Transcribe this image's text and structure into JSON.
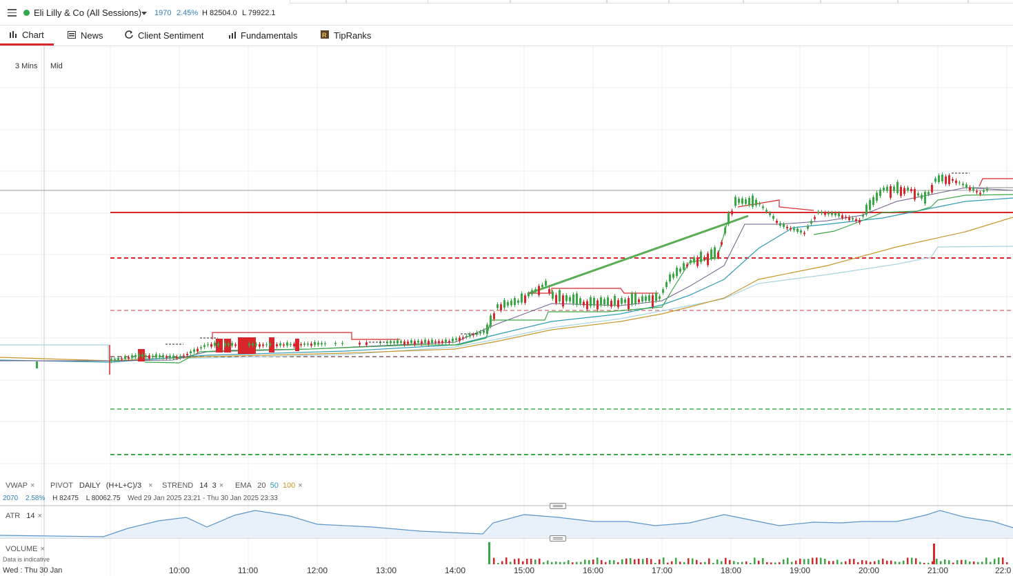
{
  "header": {
    "instrument": "Eli Lilly & Co (All Sessions)",
    "change": "1970",
    "change_pct": "2.45%",
    "high": "H 82504.0",
    "low": "L 79922.1",
    "status_color": "#2fa84f"
  },
  "tabs": [
    {
      "label": "Chart",
      "icon": "chart-icon",
      "active": true
    },
    {
      "label": "News",
      "icon": "news-icon"
    },
    {
      "label": "Client Sentiment",
      "icon": "sentiment-icon"
    },
    {
      "label": "Fundamentals",
      "icon": "fundamentals-icon"
    },
    {
      "label": "TipRanks",
      "icon": "tipranks-icon"
    }
  ],
  "chart": {
    "interval": "3 Mins",
    "price_type": "Mid",
    "date_label": "Wed : Thu 30 Jan",
    "x_ticks": [
      "10:00",
      "11:00",
      "12:00",
      "13:00",
      "14:00",
      "15:00",
      "16:00",
      "17:00",
      "18:00",
      "19:00",
      "20:00",
      "21:00",
      "22:0"
    ]
  },
  "indicators": {
    "vwap": "VWAP",
    "pivot_name": "PIVOT",
    "pivot_period": "DAILY",
    "pivot_formula": "(H+L+C)/3",
    "strend_name": "STREND",
    "strend_p1": "14",
    "strend_p2": "3",
    "ema_name": "EMA",
    "ema_20": "20",
    "ema_50": "50",
    "ema_100": "100"
  },
  "info_line": {
    "change": "2070",
    "change_pct": "2.58%",
    "high": "H 82475",
    "low": "L 80062.75",
    "range": "Wed 29 Jan 2025 23:21 - Thu 30 Jan 2025 23:33"
  },
  "atr": {
    "name": "ATR",
    "period": "14"
  },
  "volume": {
    "name": "VOLUME",
    "note": "Data is indicative"
  },
  "colors": {
    "up": "#3aa845",
    "down": "#d9262c",
    "ema20": "#2f9bb5",
    "ema100": "#c8952a",
    "vwap": "#a8d4e0",
    "atr": "#5b95c9"
  }
}
